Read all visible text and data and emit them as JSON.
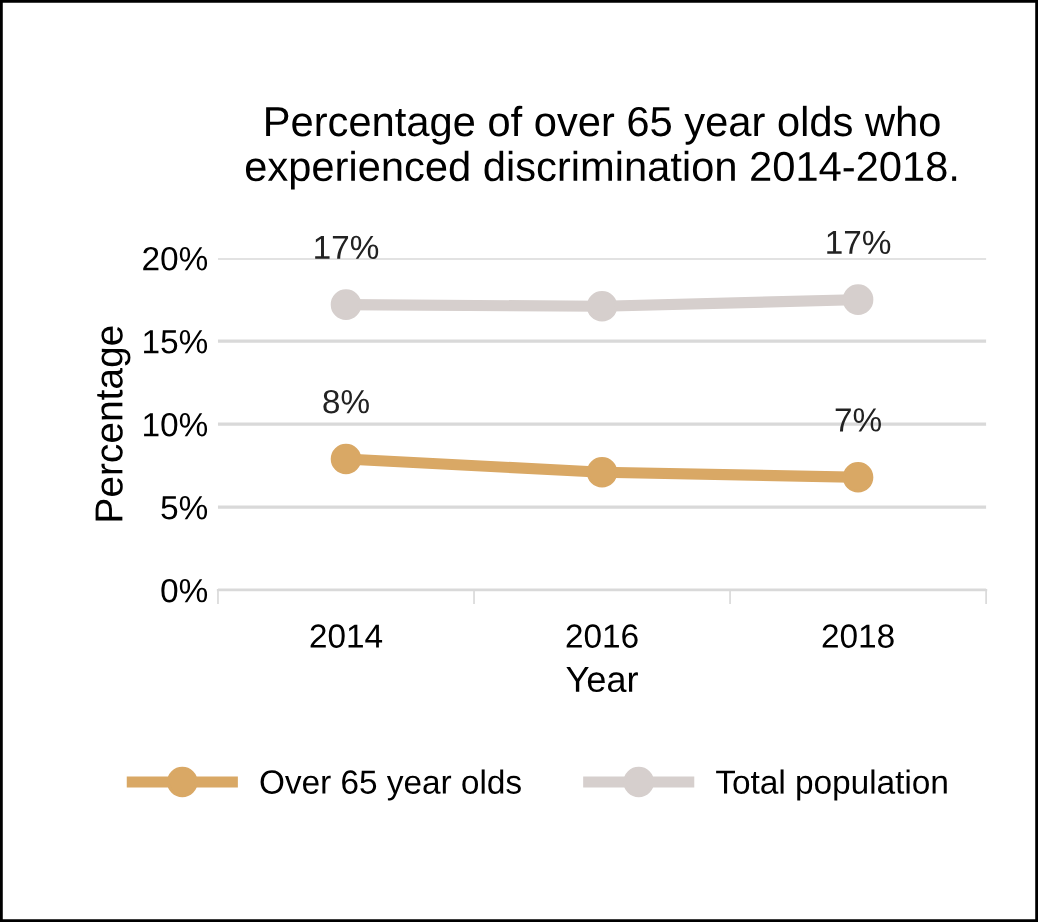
{
  "chart_data": {
    "type": "line",
    "title": "Percentage of over 65 year olds who experienced discrimination 2014-2018.",
    "xlabel": "Year",
    "ylabel": "Percentage",
    "categories": [
      "2014",
      "2016",
      "2018"
    ],
    "series": [
      {
        "name": "Over 65 year olds",
        "color": "#d9a865",
        "values": [
          7.9,
          7.1,
          6.8
        ],
        "value_labels": [
          "8%",
          null,
          "7%"
        ]
      },
      {
        "name": "Total population",
        "color": "#d6cfcd",
        "values": [
          17.2,
          17.1,
          17.5
        ],
        "value_labels": [
          "17%",
          null,
          "17%"
        ]
      }
    ],
    "ylim": [
      0,
      20
    ],
    "yticks": [
      {
        "value": 0,
        "label": "0%"
      },
      {
        "value": 5,
        "label": "5%"
      },
      {
        "value": 10,
        "label": "10%"
      },
      {
        "value": 15,
        "label": "15%"
      },
      {
        "value": 20,
        "label": "20%"
      }
    ],
    "grid": "y",
    "legend": "bottom",
    "marker": "circle",
    "line_style": "solid"
  }
}
